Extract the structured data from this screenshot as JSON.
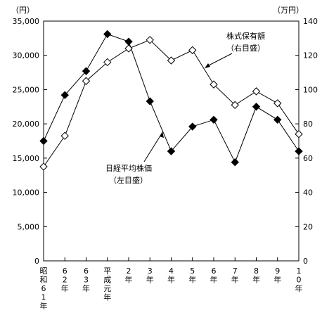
{
  "chart_data": {
    "type": "line",
    "left_unit": "（円）",
    "right_unit": "（万円）",
    "x_labels": [
      "昭和61年",
      "62年",
      "63年",
      "平成元年",
      "2年",
      "3年",
      "4年",
      "5年",
      "6年",
      "7年",
      "8年",
      "9年",
      "10年"
    ],
    "left_axis": {
      "ylim": [
        0,
        35000
      ],
      "ticks": [
        0,
        5000,
        10000,
        15000,
        20000,
        25000,
        30000,
        35000
      ],
      "tick_labels": [
        "0",
        "5,000",
        "10,000",
        "15,000",
        "20,000",
        "25,000",
        "30,000",
        "35,000"
      ]
    },
    "right_axis": {
      "ylim": [
        0,
        140
      ],
      "ticks": [
        0,
        20,
        40,
        60,
        80,
        100,
        120,
        140
      ],
      "tick_labels": [
        "0",
        "20",
        "40",
        "60",
        "80",
        "100",
        "120",
        "140"
      ]
    },
    "series": [
      {
        "label_line1": "日経平均株価",
        "label_line2": "（左目盛）",
        "axis": "left",
        "marker": "filled-diamond",
        "values": [
          17500,
          24200,
          27700,
          33100,
          32000,
          23300,
          16000,
          19600,
          20600,
          14400,
          22500,
          20600,
          16000
        ]
      },
      {
        "label_line1": "株式保有額",
        "label_line2": "（右目盛）",
        "axis": "right",
        "marker": "open-diamond",
        "values": [
          55,
          73,
          105,
          116,
          124,
          129,
          117,
          123,
          103,
          91,
          99,
          92,
          74
        ]
      }
    ],
    "grid": false
  }
}
